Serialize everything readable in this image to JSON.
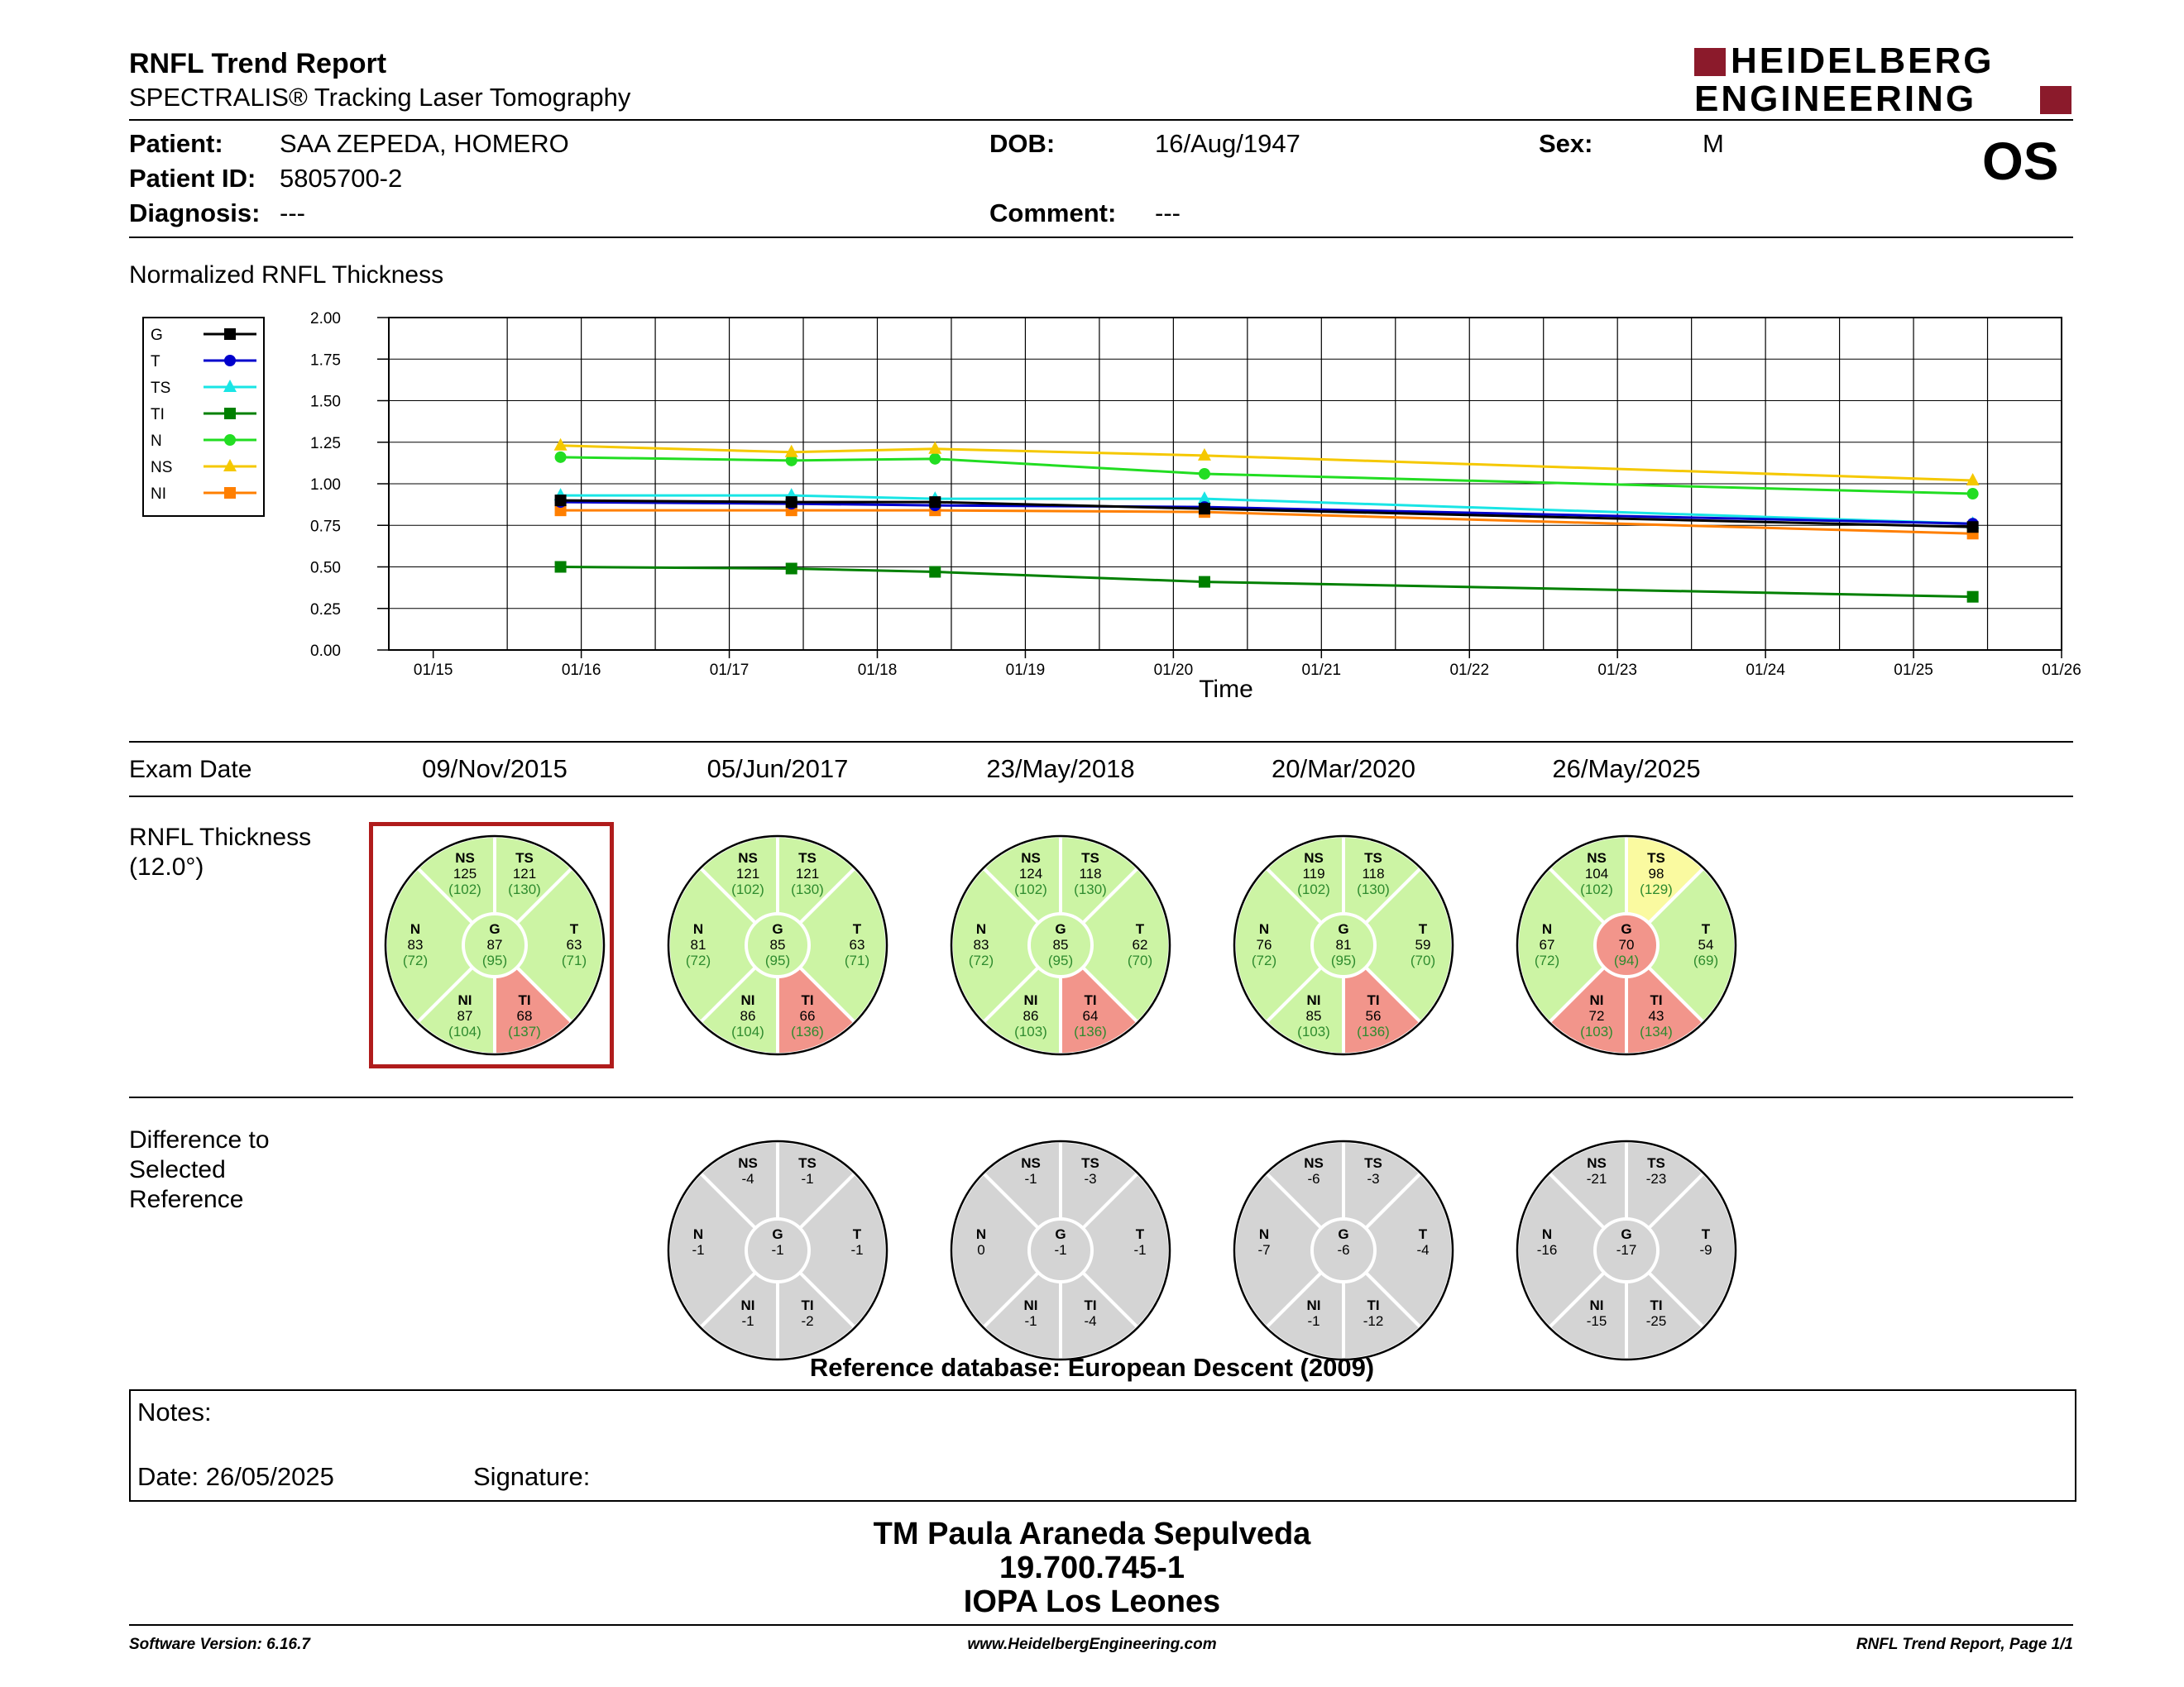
{
  "header": {
    "title": "RNFL Trend Report",
    "subtitle": "SPECTRALIS® Tracking Laser Tomography",
    "logo_line1": "HEIDELBERG",
    "logo_line2": "ENGINEERING",
    "eye": "OS",
    "brand_color": "#8b1a2b"
  },
  "patient": {
    "patient_label": "Patient:",
    "patient_value": "SAA ZEPEDA, HOMERO",
    "dob_label": "DOB:",
    "dob_value": "16/Aug/1947",
    "sex_label": "Sex:",
    "sex_value": "M",
    "id_label": "Patient ID:",
    "id_value": "5805700-2",
    "diagnosis_label": "Diagnosis:",
    "diagnosis_value": "---",
    "comment_label": "Comment:",
    "comment_value": "---"
  },
  "chart_section_title": "Normalized RNFL Thickness",
  "chart_data": {
    "type": "line",
    "title": "Normalized RNFL Thickness",
    "xlabel": "Time",
    "ylabel": "",
    "ylim": [
      0,
      2
    ],
    "yticks": [
      "0.00",
      "0.25",
      "0.50",
      "0.75",
      "1.00",
      "1.25",
      "1.50",
      "1.75",
      "2.00"
    ],
    "xticks": [
      "01/15",
      "01/16",
      "01/17",
      "01/18",
      "01/19",
      "01/20",
      "01/21",
      "01/22",
      "01/23",
      "01/24",
      "01/25",
      "01/26"
    ],
    "grid": true,
    "legend_placement": "left",
    "x": [
      2015.86,
      2017.42,
      2018.39,
      2020.21,
      2025.4
    ],
    "series": [
      {
        "name": "G",
        "color": "#000000",
        "marker": "square",
        "values": [
          0.9,
          0.89,
          0.89,
          0.85,
          0.74
        ]
      },
      {
        "name": "T",
        "color": "#0000cc",
        "marker": "circle",
        "values": [
          0.89,
          0.88,
          0.87,
          0.86,
          0.76
        ]
      },
      {
        "name": "TS",
        "color": "#19e5e5",
        "marker": "triangle",
        "values": [
          0.93,
          0.93,
          0.91,
          0.91,
          0.76
        ]
      },
      {
        "name": "TI",
        "color": "#008000",
        "marker": "square",
        "values": [
          0.5,
          0.49,
          0.47,
          0.41,
          0.32
        ]
      },
      {
        "name": "N",
        "color": "#22dd22",
        "marker": "circle",
        "values": [
          1.16,
          1.14,
          1.15,
          1.06,
          0.94
        ]
      },
      {
        "name": "NS",
        "color": "#f5c800",
        "marker": "triangle",
        "values": [
          1.23,
          1.19,
          1.21,
          1.17,
          1.02
        ]
      },
      {
        "name": "NI",
        "color": "#ff7f00",
        "marker": "square",
        "values": [
          0.84,
          0.84,
          0.84,
          0.83,
          0.7
        ]
      }
    ]
  },
  "exam_date_label": "Exam Date",
  "exam_dates": [
    "09/Nov/2015",
    "05/Jun/2017",
    "23/May/2018",
    "20/Mar/2020",
    "26/May/2025"
  ],
  "rnfl_label_1": "RNFL Thickness",
  "rnfl_label_2": "(12.0°)",
  "diff_label_1": "Difference to",
  "diff_label_2": "Selected",
  "diff_label_3": "Reference",
  "colors": {
    "green": "#ccf4a4",
    "red": "#f2958b",
    "yellow": "#fafaa0",
    "gray": "#d4d4d4",
    "ref_green": "#2e8b2e",
    "selected_frame": "#b01c1c"
  },
  "rnfl_circles": [
    {
      "NS": {
        "v": "125",
        "r": "(102)",
        "c": "green"
      },
      "TS": {
        "v": "121",
        "r": "(130)",
        "c": "green"
      },
      "N": {
        "v": "83",
        "r": "(72)",
        "c": "green"
      },
      "G": {
        "v": "87",
        "r": "(95)",
        "c": "green"
      },
      "T": {
        "v": "63",
        "r": "(71)",
        "c": "green"
      },
      "NI": {
        "v": "87",
        "r": "(104)",
        "c": "green"
      },
      "TI": {
        "v": "68",
        "r": "(137)",
        "c": "red"
      }
    },
    {
      "NS": {
        "v": "121",
        "r": "(102)",
        "c": "green"
      },
      "TS": {
        "v": "121",
        "r": "(130)",
        "c": "green"
      },
      "N": {
        "v": "81",
        "r": "(72)",
        "c": "green"
      },
      "G": {
        "v": "85",
        "r": "(95)",
        "c": "green"
      },
      "T": {
        "v": "63",
        "r": "(71)",
        "c": "green"
      },
      "NI": {
        "v": "86",
        "r": "(104)",
        "c": "green"
      },
      "TI": {
        "v": "66",
        "r": "(136)",
        "c": "red"
      }
    },
    {
      "NS": {
        "v": "124",
        "r": "(102)",
        "c": "green"
      },
      "TS": {
        "v": "118",
        "r": "(130)",
        "c": "green"
      },
      "N": {
        "v": "83",
        "r": "(72)",
        "c": "green"
      },
      "G": {
        "v": "85",
        "r": "(95)",
        "c": "green"
      },
      "T": {
        "v": "62",
        "r": "(70)",
        "c": "green"
      },
      "NI": {
        "v": "86",
        "r": "(103)",
        "c": "green"
      },
      "TI": {
        "v": "64",
        "r": "(136)",
        "c": "red"
      }
    },
    {
      "NS": {
        "v": "119",
        "r": "(102)",
        "c": "green"
      },
      "TS": {
        "v": "118",
        "r": "(130)",
        "c": "green"
      },
      "N": {
        "v": "76",
        "r": "(72)",
        "c": "green"
      },
      "G": {
        "v": "81",
        "r": "(95)",
        "c": "green"
      },
      "T": {
        "v": "59",
        "r": "(70)",
        "c": "green"
      },
      "NI": {
        "v": "85",
        "r": "(103)",
        "c": "green"
      },
      "TI": {
        "v": "56",
        "r": "(136)",
        "c": "red"
      }
    },
    {
      "NS": {
        "v": "104",
        "r": "(102)",
        "c": "green"
      },
      "TS": {
        "v": "98",
        "r": "(129)",
        "c": "yellow"
      },
      "N": {
        "v": "67",
        "r": "(72)",
        "c": "green"
      },
      "G": {
        "v": "70",
        "r": "(94)",
        "c": "red"
      },
      "T": {
        "v": "54",
        "r": "(69)",
        "c": "green"
      },
      "NI": {
        "v": "72",
        "r": "(103)",
        "c": "red"
      },
      "TI": {
        "v": "43",
        "r": "(134)",
        "c": "red"
      }
    }
  ],
  "diff_circles": [
    null,
    {
      "NS": "-4",
      "TS": "-1",
      "N": "-1",
      "G": "-1",
      "T": "-1",
      "NI": "-1",
      "TI": "-2"
    },
    {
      "NS": "-1",
      "TS": "-3",
      "N": "0",
      "G": "-1",
      "T": "-1",
      "NI": "-1",
      "TI": "-4"
    },
    {
      "NS": "-6",
      "TS": "-3",
      "N": "-7",
      "G": "-6",
      "T": "-4",
      "NI": "-1",
      "TI": "-12"
    },
    {
      "NS": "-21",
      "TS": "-23",
      "N": "-16",
      "G": "-17",
      "T": "-9",
      "NI": "-15",
      "TI": "-25"
    }
  ],
  "reference_db": "Reference database: European Descent (2009)",
  "notes": {
    "notes_label": "Notes:",
    "date_label": "Date: 26/05/2025",
    "signature_label": "Signature:"
  },
  "signer": {
    "name": "TM Paula Araneda Sepulveda",
    "id": "19.700.745-1",
    "institution": "IOPA Los Leones"
  },
  "footer": {
    "software": "Software Version: 6.16.7",
    "website": "www.HeidelbergEngineering.com",
    "page": "RNFL Trend Report, Page 1/1"
  }
}
